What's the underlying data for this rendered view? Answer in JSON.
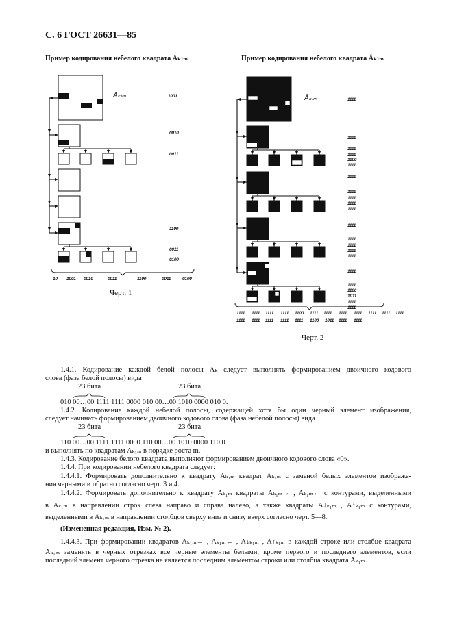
{
  "header": "С. 6 ГОСТ 26631—85",
  "fig1": {
    "title": "Пример кодирования небелого квадрата Aₖₗₘ",
    "square_label": "Aₖₗₘ",
    "codes_right": [
      "1001",
      "0010",
      "0011",
      "1100",
      "0011",
      "0100"
    ],
    "codes_bottom": [
      "10",
      "1001",
      "0010",
      "0011",
      "1100",
      "0011",
      "0100"
    ],
    "caption": "Черт. 1"
  },
  "fig2": {
    "title": "Пример кодирования небелого квадрата Āₖₗₘ",
    "square_label": "Āₖₗₘ",
    "codes_right": [
      "1111",
      "1111",
      "1111",
      "1111",
      "1100",
      "1111",
      "1111",
      "1111",
      "1111",
      "1111",
      "1111",
      "1111",
      "1111",
      "1111",
      "1111",
      "1111",
      "1111",
      "1111",
      "1100",
      "1011",
      "1111",
      "1111"
    ],
    "codes_bottom_row1": [
      "1111",
      "1111",
      "1111",
      "1111",
      "1100",
      "1111",
      "1111",
      "1111",
      "1111",
      "1111",
      "1111",
      "1111"
    ],
    "codes_bottom_row2": [
      "1111",
      "1111",
      "1111",
      "1111",
      "1111",
      "1100",
      "1011",
      "1111",
      "1111"
    ],
    "caption": "Черт. 2"
  },
  "body": {
    "p141_l1": "1.4.1. Кодирование каждой белой полосы Aₖ следует выполнять формированием двоичного кодового",
    "p141_l2": "слова (фаза белой полосы) вида",
    "bits_label": "23 бита",
    "code_white": "010  00…00  1111  1111  0000  010  00…00  1010  0000  010  0.",
    "p142_l1": "1.4.2. Кодирование каждой небелой полосы, содержащей хотя бы один черный элемент изображения,",
    "p142_l2": "следует начинать формированием двоичного кодового слова (фаза небелой полосы) вида",
    "code_nonwhite": "110  00…00  1111  1111  0000  110  00…00  1010  0000  110  0",
    "p142_l3": "и выполнять по квадратам Aₖ₁ₘ в порядке роста m.",
    "p143": "1.4.3. Кодирование белого квадрата выполняют формированием двоичного кодового слова «0».",
    "p144": "1.4.4. При кодировании небелого квадрата следует:",
    "p1441_l1": "1.4.4.1. Формировать дополнительно к квадрату Aₖ₁ₘ квадрат Āₖ₁ₘ с заменой белых элементов изображе-",
    "p1441_l2": "ния черными и обратно согласно черт. 3 и 4.",
    "p1442_l1": "1.4.4.2. Формировать дополнительно к квадрату Aₖ₁ₘ  квадраты Aₖ₁ₘ→ , Aₖ₁ₘ←  с контурами, выделенными",
    "p1442_l2": "в  Aₖ₁ₘ  в направлении строк слева направо и справа налево, а также квадраты A↓ₖ₁ₘ , A↑ₖ₁ₘ  с контурами,",
    "p1442_l3": "выделенными в Aₖ₁ₘ в направлении столбцов сверху вниз и снизу вверх согласно черт. 5—8.",
    "revision": "(Измененная редакция, Изм. № 2).",
    "p1443_l1": "1.4.4.3. При формировании квадратов Aₖ₁ₘ→ , Aₖ₁ₘ← ,  A↓ₖ₁ₘ ,  A↑ₖ₁ₘ  в каждой строке или столбце квадрата",
    "p1443_l2": "Aₖ₁ₘ заменять в черных отрезках все черные элементы белыми, кроме первого и последнего элементов, если",
    "p1443_l3": "последний элемент черного отрезка не является последним элементом строки или столбца квадрата Aₖ₁ₘ."
  }
}
